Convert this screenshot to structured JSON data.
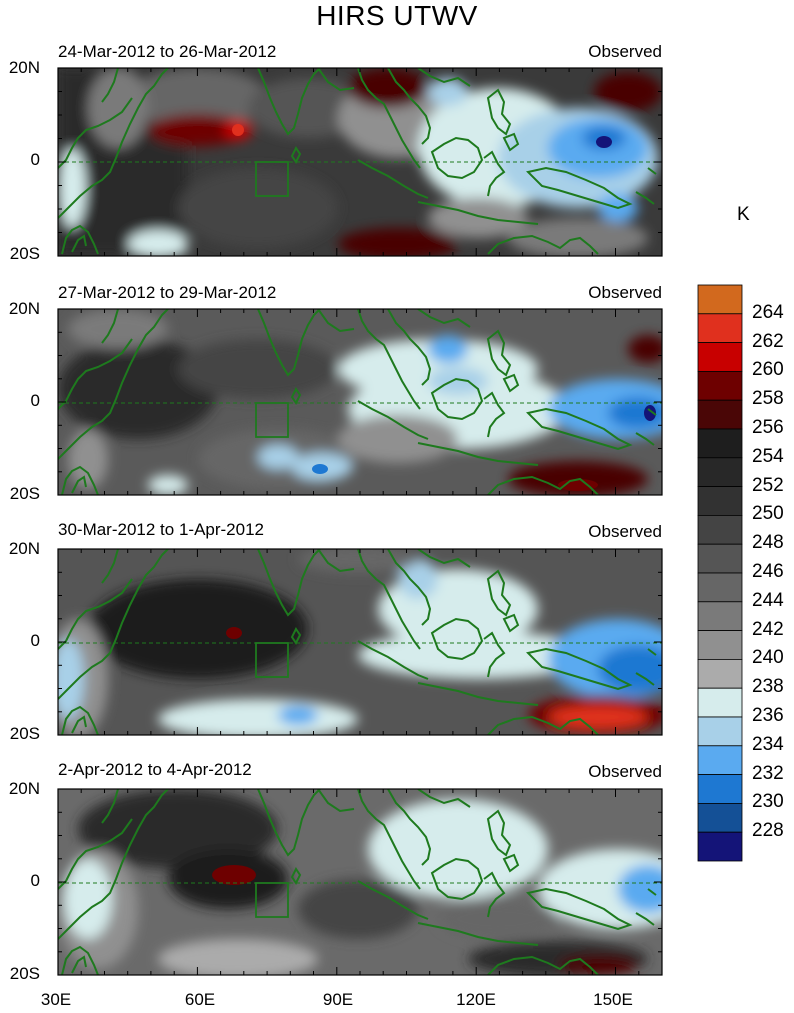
{
  "title": "HIRS UTWV",
  "unit": "K",
  "panels": [
    {
      "period": "24-Mar-2012 to 26-Mar-2012",
      "label": "Observed"
    },
    {
      "period": "27-Mar-2012 to 29-Mar-2012",
      "label": "Observed"
    },
    {
      "period": "30-Mar-2012 to 1-Apr-2012",
      "label": "Observed"
    },
    {
      "period": "2-Apr-2012 to 4-Apr-2012",
      "label": "Observed"
    }
  ],
  "lat_labels": [
    "20N",
    "0",
    "20S"
  ],
  "lon_labels": [
    "30E",
    "60E",
    "90E",
    "120E",
    "150E"
  ],
  "colorbar": {
    "labels": [
      "264",
      "262",
      "260",
      "258",
      "256",
      "254",
      "252",
      "250",
      "248",
      "246",
      "244",
      "242",
      "240",
      "238",
      "236",
      "234",
      "232",
      "230",
      "228"
    ],
    "colors": [
      "#d2691e",
      "#e0301e",
      "#c80000",
      "#6e0000",
      "#4a0606",
      "#1e1e1e",
      "#282828",
      "#323232",
      "#444444",
      "#555555",
      "#666666",
      "#7a7a7a",
      "#909090",
      "#ababab",
      "#d6ecec",
      "#a8d0e8",
      "#5aaaf0",
      "#1e78d2",
      "#145096",
      "#141478"
    ]
  }
}
